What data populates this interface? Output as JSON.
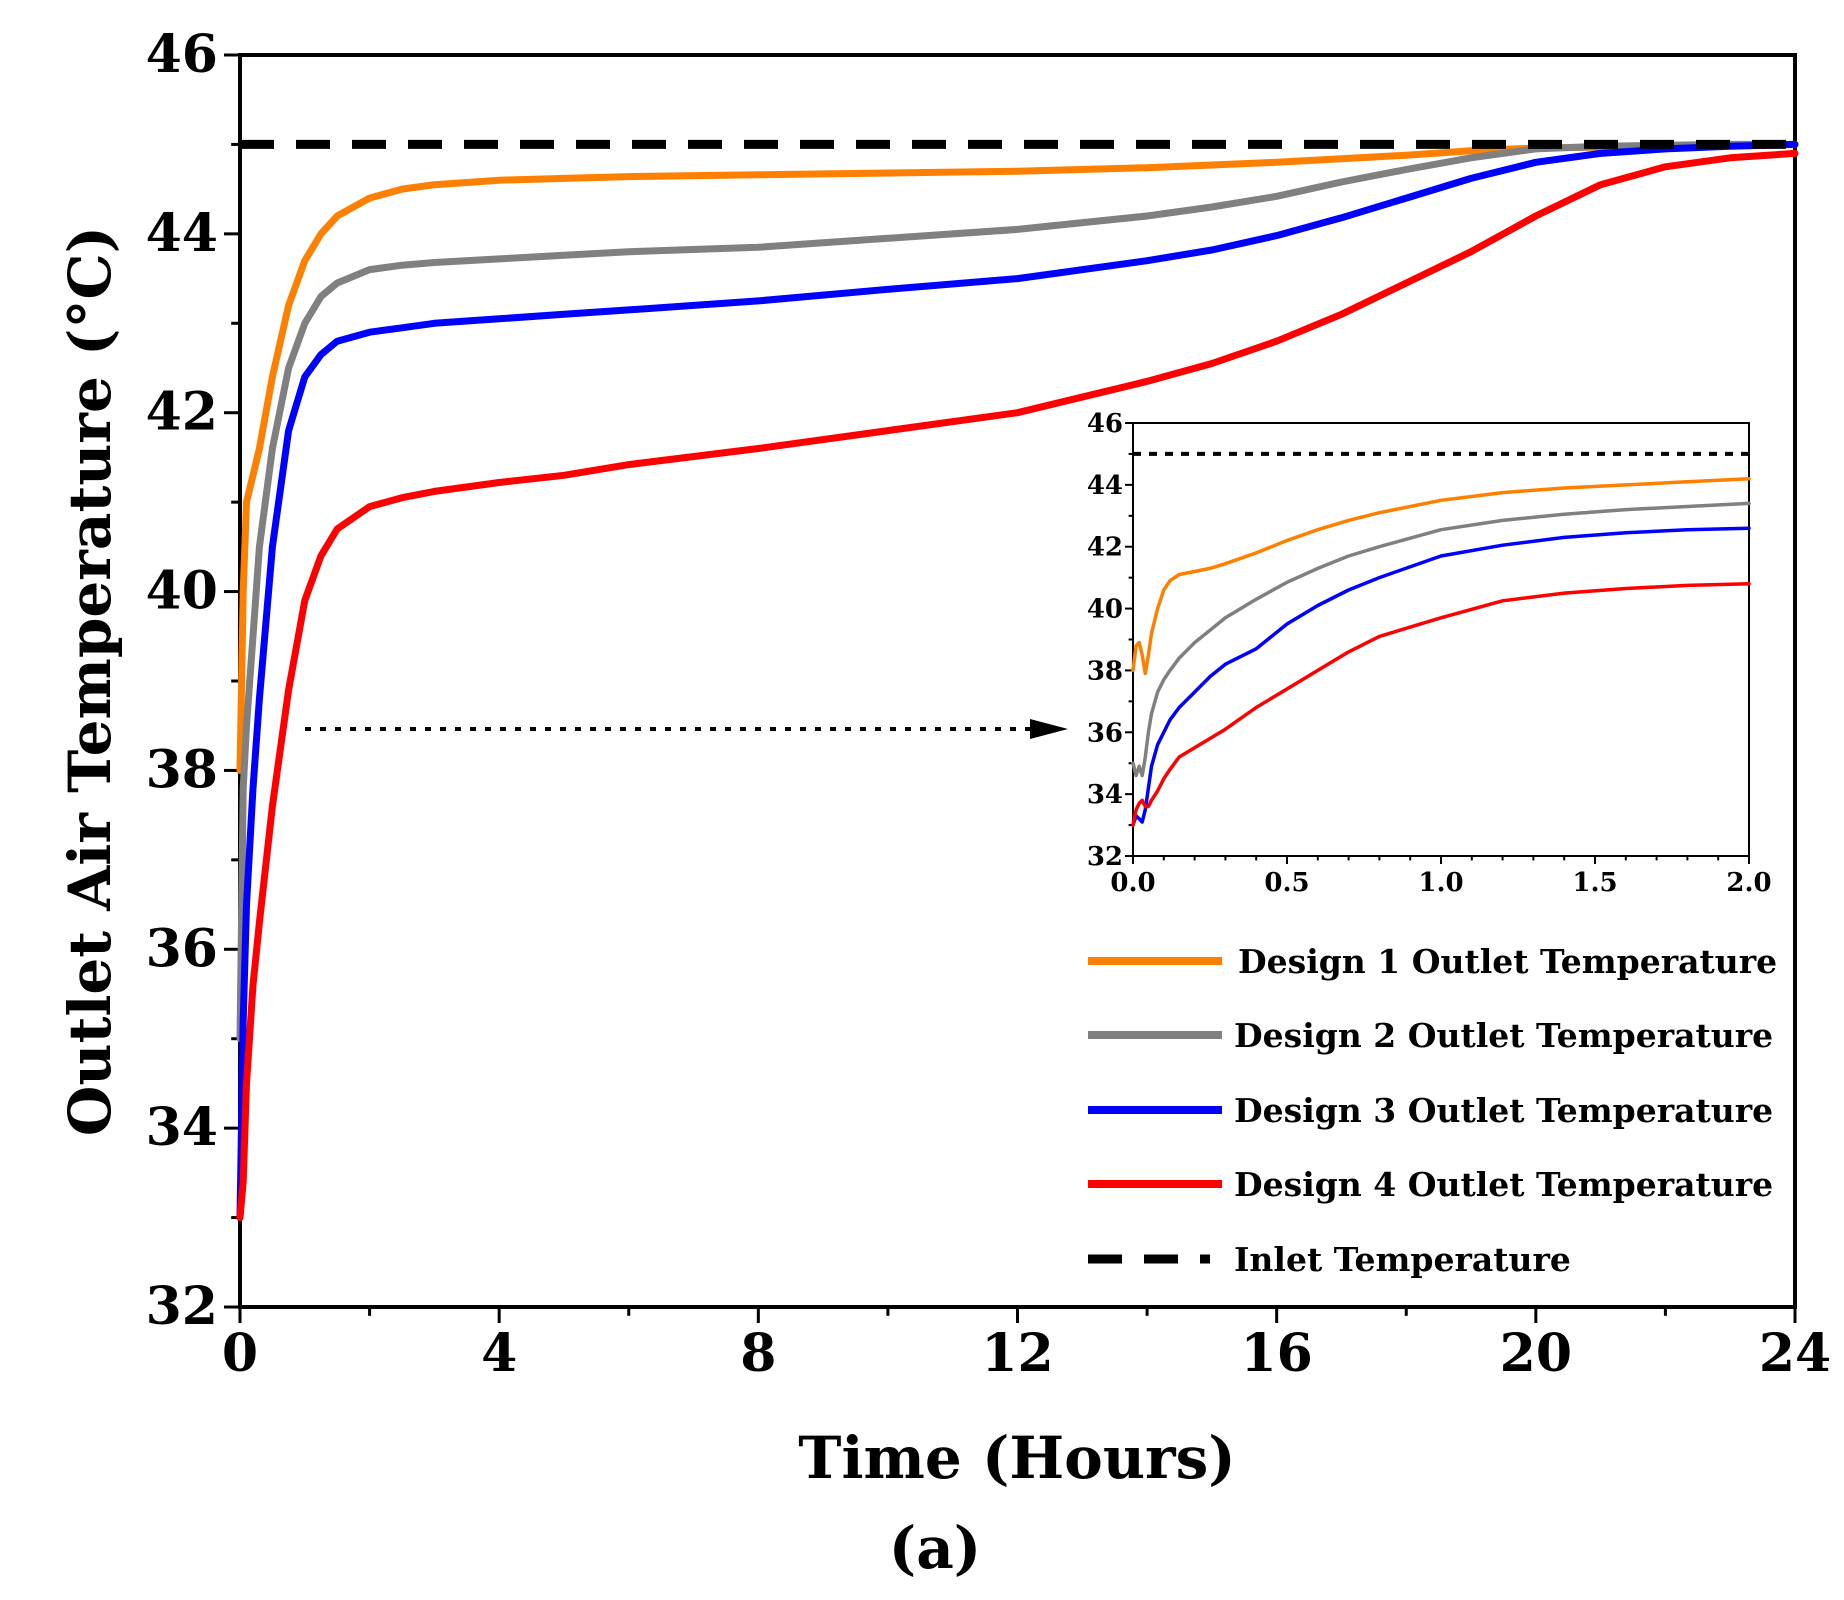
{
  "chart_data": [
    {
      "type": "line",
      "panel": "main",
      "xlabel": "Time (Hours)",
      "ylabel": "Outlet Air Temperature (°C)",
      "caption": "(a)",
      "xlim": [
        0,
        24
      ],
      "ylim": [
        32,
        46
      ],
      "xticks": [
        0,
        4,
        8,
        12,
        16,
        20,
        24
      ],
      "yticks": [
        32,
        34,
        36,
        38,
        40,
        42,
        44,
        46
      ],
      "x": [
        0,
        0.05,
        0.1,
        0.2,
        0.3,
        0.5,
        0.75,
        1,
        1.25,
        1.5,
        2,
        2.5,
        3,
        4,
        5,
        6,
        8,
        10,
        12,
        14,
        15,
        16,
        17,
        18,
        19,
        20,
        21,
        22,
        23,
        24
      ],
      "series": [
        {
          "name": "Design 1 Outlet Temperature",
          "color": "#ff8000",
          "style": "solid",
          "values": [
            38.0,
            40.0,
            41.0,
            41.3,
            41.6,
            42.4,
            43.2,
            43.7,
            44.0,
            44.2,
            44.4,
            44.5,
            44.55,
            44.6,
            44.62,
            44.64,
            44.66,
            44.68,
            44.7,
            44.74,
            44.77,
            44.8,
            44.84,
            44.88,
            44.93,
            44.96,
            44.97,
            44.98,
            44.99,
            45.0
          ]
        },
        {
          "name": "Design 2 Outlet Temperature",
          "color": "#808080",
          "style": "solid",
          "values": [
            35.0,
            37.8,
            38.5,
            39.5,
            40.5,
            41.6,
            42.5,
            43.0,
            43.3,
            43.45,
            43.6,
            43.65,
            43.68,
            43.72,
            43.76,
            43.8,
            43.85,
            43.95,
            44.05,
            44.2,
            44.3,
            44.42,
            44.58,
            44.72,
            44.85,
            44.95,
            44.98,
            44.99,
            45.0,
            45.0
          ]
        },
        {
          "name": "Design 3 Outlet Temperature",
          "color": "#0000ff",
          "style": "solid",
          "values": [
            33.0,
            35.2,
            36.5,
            37.8,
            38.8,
            40.5,
            41.8,
            42.4,
            42.65,
            42.8,
            42.9,
            42.95,
            43.0,
            43.05,
            43.1,
            43.15,
            43.25,
            43.38,
            43.5,
            43.7,
            43.82,
            43.98,
            44.18,
            44.4,
            44.62,
            44.8,
            44.9,
            44.95,
            44.98,
            45.0
          ]
        },
        {
          "name": "Design 4 Outlet Temperature",
          "color": "#ff0000",
          "style": "solid",
          "values": [
            33.0,
            33.4,
            34.5,
            35.6,
            36.3,
            37.6,
            38.9,
            39.9,
            40.4,
            40.7,
            40.95,
            41.05,
            41.12,
            41.22,
            41.3,
            41.42,
            41.6,
            41.8,
            42.0,
            42.35,
            42.55,
            42.8,
            43.1,
            43.45,
            43.8,
            44.2,
            44.55,
            44.75,
            44.85,
            44.9
          ]
        },
        {
          "name": "Inlet Temperature",
          "color": "#000000",
          "style": "dashed",
          "values": [
            45,
            45,
            45,
            45,
            45,
            45,
            45,
            45,
            45,
            45,
            45,
            45,
            45,
            45,
            45,
            45,
            45,
            45,
            45,
            45,
            45,
            45,
            45,
            45,
            45,
            45,
            45,
            45,
            45,
            45
          ]
        }
      ],
      "legend_position": "bottom-right"
    },
    {
      "type": "line",
      "panel": "inset",
      "xlim": [
        0.0,
        2.0
      ],
      "ylim": [
        32,
        46
      ],
      "xticks": [
        "0.0",
        "0.5",
        "1.0",
        "1.5",
        "2.0"
      ],
      "yticks": [
        32,
        34,
        36,
        38,
        40,
        42,
        44,
        46
      ],
      "x": [
        0,
        0.01,
        0.02,
        0.03,
        0.04,
        0.05,
        0.06,
        0.08,
        0.1,
        0.12,
        0.15,
        0.2,
        0.25,
        0.3,
        0.4,
        0.5,
        0.6,
        0.7,
        0.8,
        1.0,
        1.2,
        1.4,
        1.6,
        1.8,
        2.0
      ],
      "series": [
        {
          "name": "Design 1",
          "color": "#ff8000",
          "values": [
            38.0,
            38.8,
            38.9,
            38.5,
            37.9,
            38.5,
            39.2,
            40.0,
            40.6,
            40.9,
            41.1,
            41.2,
            41.3,
            41.45,
            41.8,
            42.2,
            42.55,
            42.85,
            43.1,
            43.5,
            43.75,
            43.9,
            44.0,
            44.1,
            44.2
          ]
        },
        {
          "name": "Design 2",
          "color": "#808080",
          "values": [
            35.0,
            34.6,
            34.9,
            34.6,
            35.2,
            36.0,
            36.6,
            37.3,
            37.7,
            38.0,
            38.4,
            38.9,
            39.3,
            39.7,
            40.3,
            40.85,
            41.3,
            41.7,
            42.0,
            42.55,
            42.85,
            43.05,
            43.2,
            43.3,
            43.4
          ]
        },
        {
          "name": "Design 3",
          "color": "#0000ff",
          "values": [
            33.0,
            33.3,
            33.2,
            33.1,
            33.5,
            34.2,
            34.9,
            35.6,
            36.0,
            36.4,
            36.8,
            37.3,
            37.8,
            38.2,
            38.7,
            39.5,
            40.1,
            40.6,
            41.0,
            41.7,
            42.05,
            42.3,
            42.45,
            42.55,
            42.6
          ]
        },
        {
          "name": "Design 4",
          "color": "#ff0000",
          "values": [
            33.0,
            33.5,
            33.7,
            33.8,
            33.6,
            33.6,
            33.8,
            34.1,
            34.5,
            34.8,
            35.2,
            35.5,
            35.8,
            36.1,
            36.8,
            37.4,
            38.0,
            38.6,
            39.1,
            39.7,
            40.25,
            40.5,
            40.65,
            40.75,
            40.8
          ]
        },
        {
          "name": "Inlet",
          "color": "#000000",
          "values": [
            45,
            45,
            45,
            45,
            45,
            45,
            45,
            45,
            45,
            45,
            45,
            45,
            45,
            45,
            45,
            45,
            45,
            45,
            45,
            45,
            45,
            45,
            45,
            45,
            45
          ]
        }
      ]
    }
  ]
}
